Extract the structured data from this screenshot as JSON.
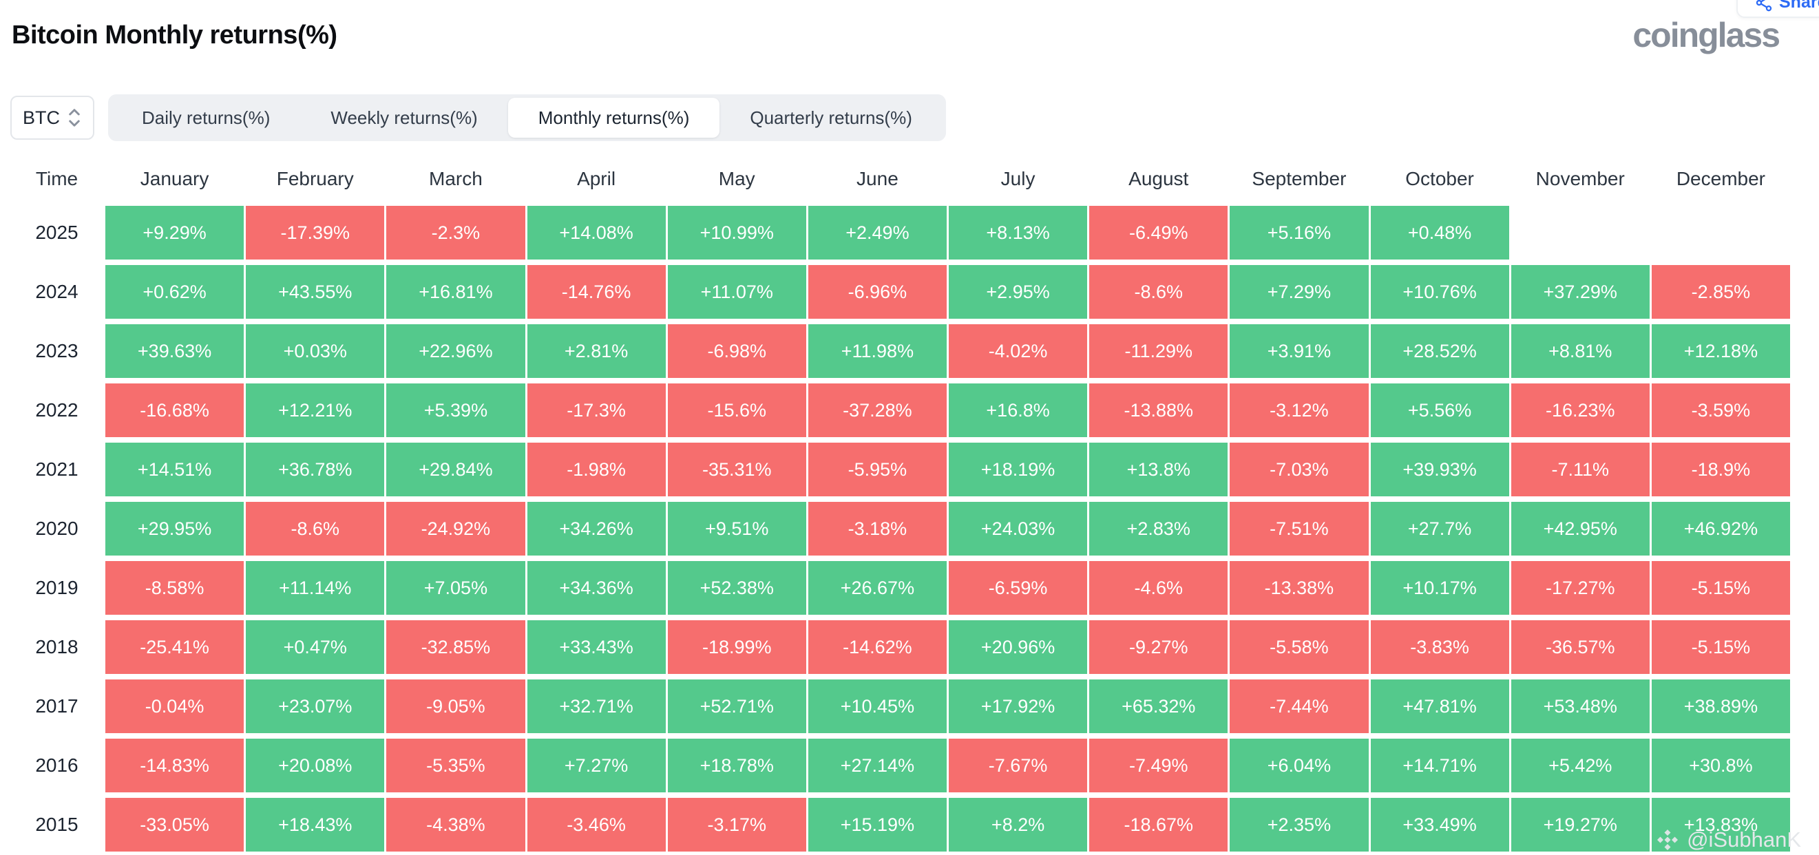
{
  "header": {
    "title": "Bitcoin Monthly returns(%)",
    "logo": "coinglass",
    "share_label": "Share",
    "symbol": "BTC"
  },
  "tabs": [
    {
      "label": "Daily returns(%)",
      "active": false
    },
    {
      "label": "Weekly returns(%)",
      "active": false
    },
    {
      "label": "Monthly returns(%)",
      "active": true
    },
    {
      "label": "Quarterly returns(%)",
      "active": false
    }
  ],
  "watermark": {
    "handle": "@iSubhanK"
  },
  "colors": {
    "positive": "#54c98c",
    "negative": "#f66e6e"
  },
  "chart_data": {
    "type": "heatmap",
    "title": "Bitcoin Monthly returns(%)",
    "time_label": "Time",
    "columns": [
      "January",
      "February",
      "March",
      "April",
      "May",
      "June",
      "July",
      "August",
      "September",
      "October",
      "November",
      "December"
    ],
    "rows": [
      {
        "year": "2025",
        "values": [
          "+9.29%",
          "-17.39%",
          "-2.3%",
          "+14.08%",
          "+10.99%",
          "+2.49%",
          "+8.13%",
          "-6.49%",
          "+5.16%",
          "+0.48%",
          "",
          ""
        ]
      },
      {
        "year": "2024",
        "values": [
          "+0.62%",
          "+43.55%",
          "+16.81%",
          "-14.76%",
          "+11.07%",
          "-6.96%",
          "+2.95%",
          "-8.6%",
          "+7.29%",
          "+10.76%",
          "+37.29%",
          "-2.85%"
        ]
      },
      {
        "year": "2023",
        "values": [
          "+39.63%",
          "+0.03%",
          "+22.96%",
          "+2.81%",
          "-6.98%",
          "+11.98%",
          "-4.02%",
          "-11.29%",
          "+3.91%",
          "+28.52%",
          "+8.81%",
          "+12.18%"
        ]
      },
      {
        "year": "2022",
        "values": [
          "-16.68%",
          "+12.21%",
          "+5.39%",
          "-17.3%",
          "-15.6%",
          "-37.28%",
          "+16.8%",
          "-13.88%",
          "-3.12%",
          "+5.56%",
          "-16.23%",
          "-3.59%"
        ]
      },
      {
        "year": "2021",
        "values": [
          "+14.51%",
          "+36.78%",
          "+29.84%",
          "-1.98%",
          "-35.31%",
          "-5.95%",
          "+18.19%",
          "+13.8%",
          "-7.03%",
          "+39.93%",
          "-7.11%",
          "-18.9%"
        ]
      },
      {
        "year": "2020",
        "values": [
          "+29.95%",
          "-8.6%",
          "-24.92%",
          "+34.26%",
          "+9.51%",
          "-3.18%",
          "+24.03%",
          "+2.83%",
          "-7.51%",
          "+27.7%",
          "+42.95%",
          "+46.92%"
        ]
      },
      {
        "year": "2019",
        "values": [
          "-8.58%",
          "+11.14%",
          "+7.05%",
          "+34.36%",
          "+52.38%",
          "+26.67%",
          "-6.59%",
          "-4.6%",
          "-13.38%",
          "+10.17%",
          "-17.27%",
          "-5.15%"
        ]
      },
      {
        "year": "2018",
        "values": [
          "-25.41%",
          "+0.47%",
          "-32.85%",
          "+33.43%",
          "-18.99%",
          "-14.62%",
          "+20.96%",
          "-9.27%",
          "-5.58%",
          "-3.83%",
          "-36.57%",
          "-5.15%"
        ]
      },
      {
        "year": "2017",
        "values": [
          "-0.04%",
          "+23.07%",
          "-9.05%",
          "+32.71%",
          "+52.71%",
          "+10.45%",
          "+17.92%",
          "+65.32%",
          "-7.44%",
          "+47.81%",
          "+53.48%",
          "+38.89%"
        ]
      },
      {
        "year": "2016",
        "values": [
          "-14.83%",
          "+20.08%",
          "-5.35%",
          "+7.27%",
          "+18.78%",
          "+27.14%",
          "-7.67%",
          "-7.49%",
          "+6.04%",
          "+14.71%",
          "+5.42%",
          "+30.8%"
        ]
      },
      {
        "year": "2015",
        "values": [
          "-33.05%",
          "+18.43%",
          "-4.38%",
          "-3.46%",
          "-3.17%",
          "+15.19%",
          "+8.2%",
          "-18.67%",
          "+2.35%",
          "+33.49%",
          "+19.27%",
          "+13.83%"
        ]
      }
    ]
  }
}
